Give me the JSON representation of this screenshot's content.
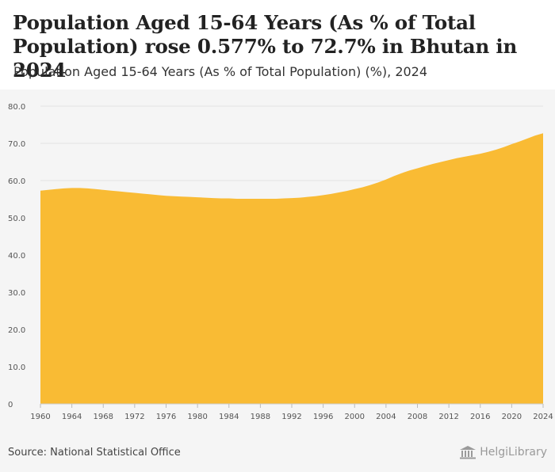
{
  "title": "Population Aged 15-64 Years (As % of Total Population) rose 0.577% to 72.7% in Bhutan in 2024",
  "subtitle": "Population Aged 15-64 Years (As % of Total Population) (%), 2024",
  "source": "Source: National Statistical Office",
  "brand": "HelgiLibrary",
  "brand_icon": "library-columns-icon",
  "colors": {
    "area": "#f9bb34",
    "grid": "#e3e3e3",
    "plot_background": "#f5f5f5",
    "axis_text": "#555555"
  },
  "chart_data": {
    "type": "area",
    "x": [
      1960,
      1961,
      1962,
      1963,
      1964,
      1965,
      1966,
      1967,
      1968,
      1969,
      1970,
      1971,
      1972,
      1973,
      1974,
      1975,
      1976,
      1977,
      1978,
      1979,
      1980,
      1981,
      1982,
      1983,
      1984,
      1985,
      1986,
      1987,
      1988,
      1989,
      1990,
      1991,
      1992,
      1993,
      1994,
      1995,
      1996,
      1997,
      1998,
      1999,
      2000,
      2001,
      2002,
      2003,
      2004,
      2005,
      2006,
      2007,
      2008,
      2009,
      2010,
      2011,
      2012,
      2013,
      2014,
      2015,
      2016,
      2017,
      2018,
      2019,
      2020,
      2021,
      2022,
      2023,
      2024
    ],
    "values": [
      57.3,
      57.5,
      57.7,
      57.9,
      58.0,
      58.0,
      57.9,
      57.7,
      57.5,
      57.3,
      57.1,
      56.9,
      56.7,
      56.5,
      56.3,
      56.1,
      55.9,
      55.8,
      55.7,
      55.6,
      55.5,
      55.4,
      55.3,
      55.2,
      55.2,
      55.1,
      55.1,
      55.1,
      55.1,
      55.1,
      55.1,
      55.2,
      55.3,
      55.4,
      55.6,
      55.8,
      56.1,
      56.4,
      56.8,
      57.2,
      57.7,
      58.2,
      58.8,
      59.5,
      60.3,
      61.2,
      62.0,
      62.7,
      63.3,
      63.9,
      64.5,
      65.0,
      65.5,
      66.0,
      66.4,
      66.8,
      67.2,
      67.7,
      68.3,
      69.0,
      69.8,
      70.5,
      71.3,
      72.1,
      72.7
    ],
    "ylim": [
      0,
      80
    ],
    "yticks": [
      0,
      10,
      20,
      30,
      40,
      50,
      60,
      70,
      80
    ],
    "ytick_labels": [
      "0",
      "10.0",
      "20.0",
      "30.0",
      "40.0",
      "50.0",
      "60.0",
      "70.0",
      "80.0"
    ],
    "xticks": [
      1960,
      1964,
      1968,
      1972,
      1976,
      1980,
      1984,
      1988,
      1992,
      1996,
      2000,
      2004,
      2008,
      2012,
      2016,
      2020,
      2024
    ],
    "xlabel": "",
    "ylabel": "",
    "grid": true,
    "legend": false
  }
}
